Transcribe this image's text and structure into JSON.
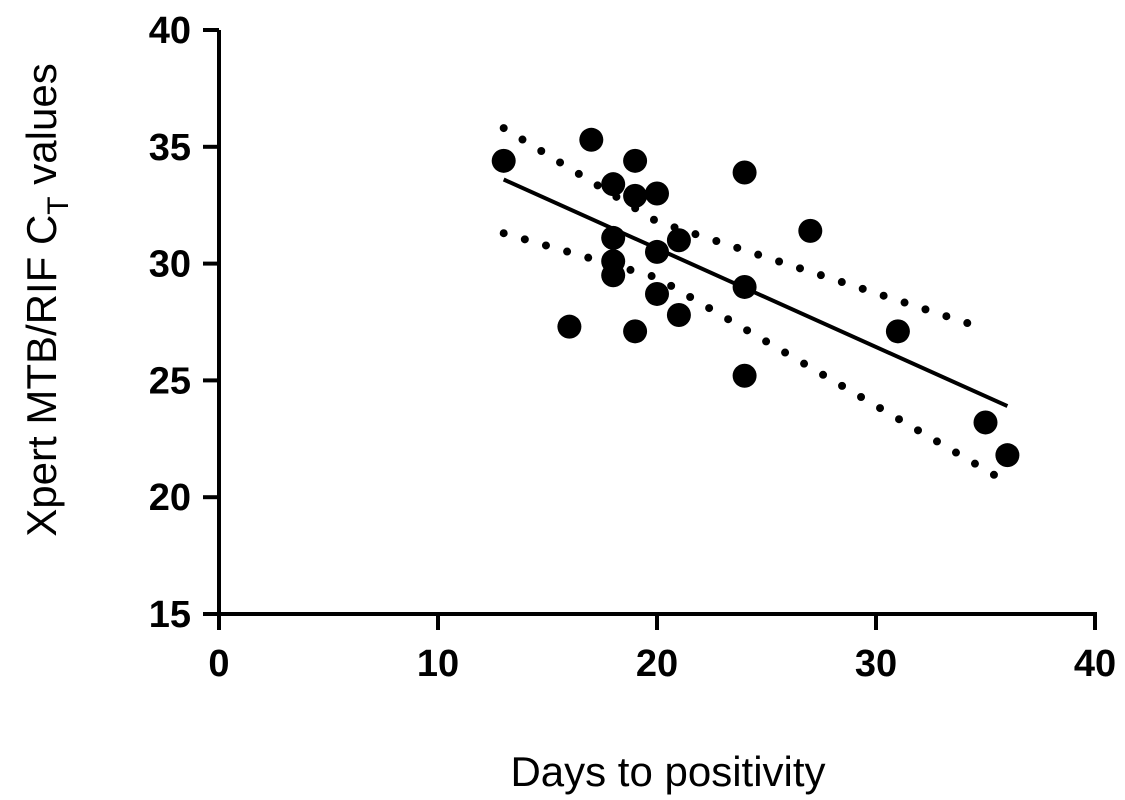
{
  "chart_data": {
    "type": "scatter",
    "xlabel": "Days to positivity",
    "ylabel_parts": {
      "main": "Xpert MTB/RIF C",
      "subscript": "T",
      "suffix": " values"
    },
    "xlim": [
      0,
      40
    ],
    "ylim": [
      15,
      40
    ],
    "x_ticks": [
      0,
      10,
      20,
      30,
      40
    ],
    "y_ticks": [
      15,
      20,
      25,
      30,
      35,
      40
    ],
    "grid": false,
    "points": [
      {
        "x": 13,
        "y": 34.4
      },
      {
        "x": 16,
        "y": 27.3
      },
      {
        "x": 17,
        "y": 35.3
      },
      {
        "x": 18,
        "y": 33.4
      },
      {
        "x": 18,
        "y": 31.1
      },
      {
        "x": 18,
        "y": 30.1
      },
      {
        "x": 18,
        "y": 29.5
      },
      {
        "x": 19,
        "y": 34.4
      },
      {
        "x": 19,
        "y": 32.9
      },
      {
        "x": 19,
        "y": 27.1
      },
      {
        "x": 20,
        "y": 33.0
      },
      {
        "x": 20,
        "y": 30.5
      },
      {
        "x": 20,
        "y": 28.7
      },
      {
        "x": 21,
        "y": 31.0
      },
      {
        "x": 21,
        "y": 27.8
      },
      {
        "x": 24,
        "y": 33.9
      },
      {
        "x": 24,
        "y": 29.0
      },
      {
        "x": 24,
        "y": 25.2
      },
      {
        "x": 27,
        "y": 31.4
      },
      {
        "x": 31,
        "y": 27.1
      },
      {
        "x": 35,
        "y": 23.2
      },
      {
        "x": 36,
        "y": 21.8
      }
    ],
    "regression_line": {
      "x": [
        13,
        36
      ],
      "y": [
        33.6,
        23.9
      ]
    },
    "confidence_band": {
      "upper": {
        "x": [
          13,
          20,
          35
        ],
        "y": [
          35.8,
          31.8,
          27.2
        ]
      },
      "lower": {
        "x": [
          13,
          20,
          35.5
        ],
        "y": [
          31.3,
          29.4,
          20.9
        ]
      }
    }
  }
}
